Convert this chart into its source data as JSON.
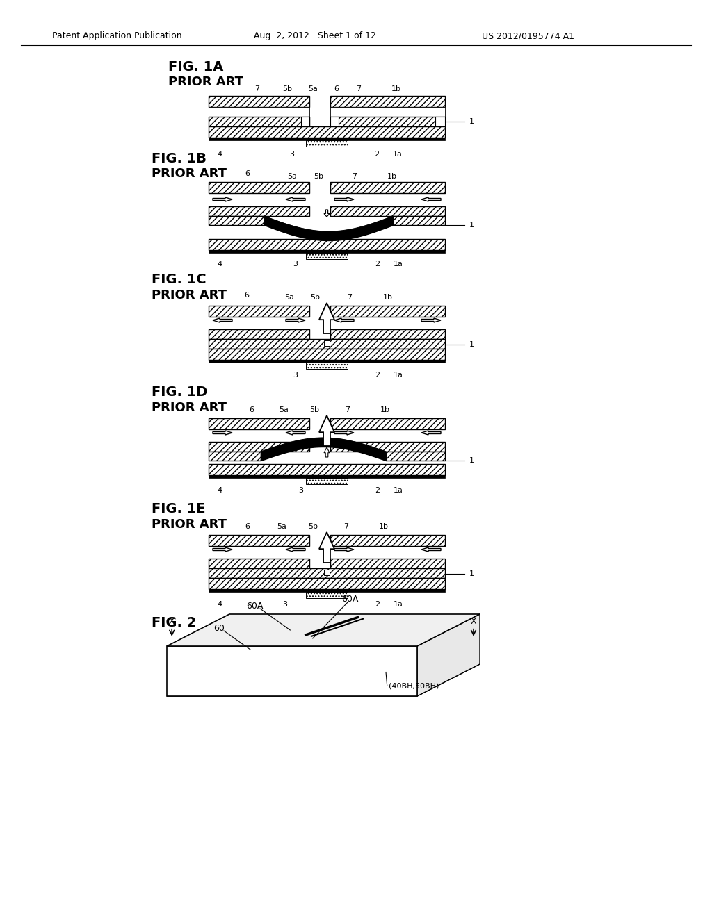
{
  "bg_color": "#ffffff",
  "header_text": "Patent Application Publication",
  "header_date": "Aug. 2, 2012   Sheet 1 of 12",
  "header_patent": "US 2012/0195774 A1",
  "line_color": "#000000",
  "fig1a_title": "FIG. 1A",
  "fig1b_title": "FIG. 1B",
  "fig1c_title": "FIG. 1C",
  "fig1d_title": "FIG. 1D",
  "fig1e_title": "FIG. 1E",
  "fig2_title": "FIG. 2",
  "prior_art": "PRIOR ART"
}
